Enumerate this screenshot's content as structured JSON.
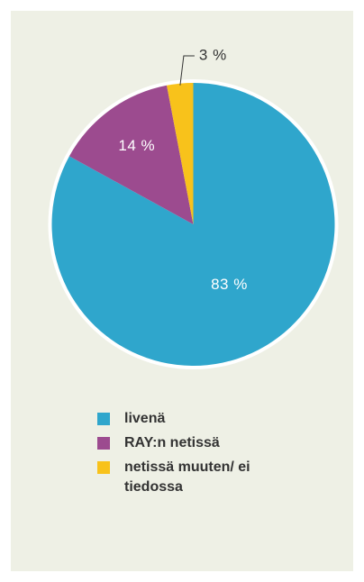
{
  "chart_data": {
    "type": "pie",
    "categories": [
      "livenä",
      "RAY:n netissä",
      "netissä muuten/ ei tiedossa"
    ],
    "values": [
      83,
      14,
      3
    ],
    "value_labels": [
      "83 %",
      "14 %",
      "3 %"
    ],
    "colors": [
      "#2fa6cc",
      "#9c4b8f",
      "#f8c21b"
    ]
  }
}
